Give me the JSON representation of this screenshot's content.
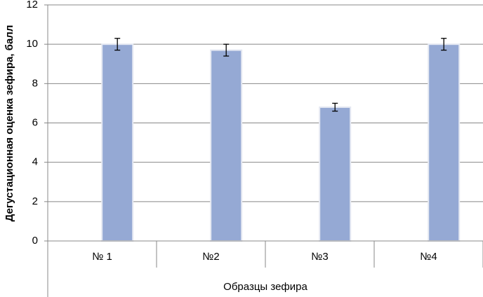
{
  "chart_data": {
    "type": "bar",
    "x_label": "Образцы зефира",
    "y_label": "Дегустационная оценка зефира, балл",
    "categories": [
      "№ 1",
      "№2",
      "№3",
      "№4"
    ],
    "values": [
      10,
      9.7,
      6.8,
      10
    ],
    "errors": [
      0.3,
      0.3,
      0.2,
      0.3
    ],
    "color": "#95a9d4",
    "ylim": [
      0,
      12
    ],
    "yticks": [
      0,
      2,
      4,
      6,
      8,
      10,
      12
    ],
    "grid": true
  }
}
